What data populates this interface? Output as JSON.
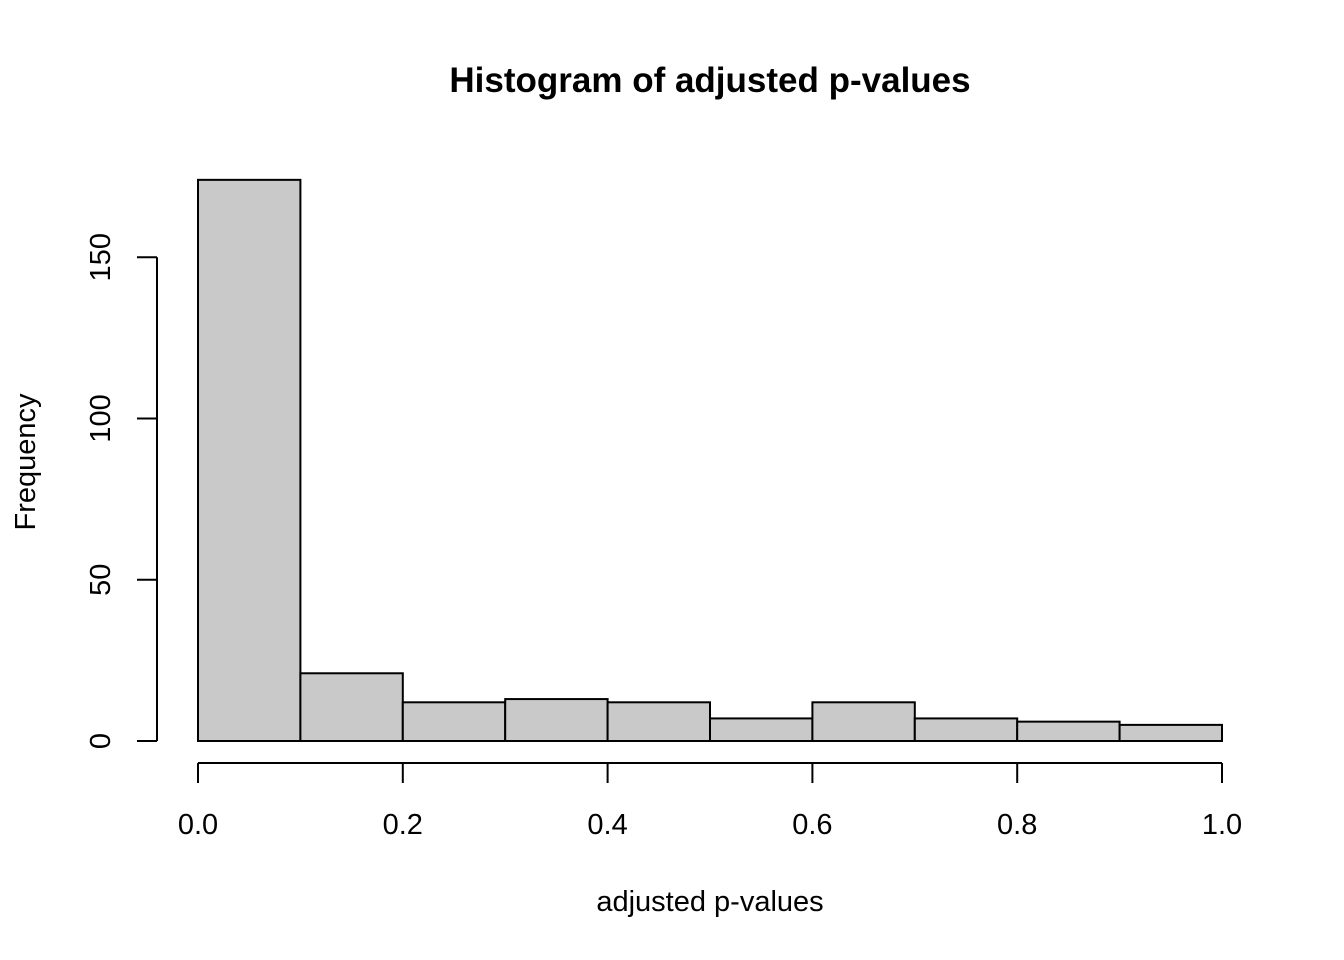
{
  "chart_data": {
    "type": "bar",
    "title": "Histogram of adjusted p-values",
    "xlabel": "adjusted p-values",
    "ylabel": "Frequency",
    "bins": [
      {
        "x0": 0.0,
        "x1": 0.1,
        "count": 174
      },
      {
        "x0": 0.1,
        "x1": 0.2,
        "count": 21
      },
      {
        "x0": 0.2,
        "x1": 0.3,
        "count": 12
      },
      {
        "x0": 0.3,
        "x1": 0.4,
        "count": 13
      },
      {
        "x0": 0.4,
        "x1": 0.5,
        "count": 12
      },
      {
        "x0": 0.5,
        "x1": 0.6,
        "count": 7
      },
      {
        "x0": 0.6,
        "x1": 0.7,
        "count": 12
      },
      {
        "x0": 0.7,
        "x1": 0.8,
        "count": 7
      },
      {
        "x0": 0.8,
        "x1": 0.9,
        "count": 6
      },
      {
        "x0": 0.9,
        "x1": 1.0,
        "count": 5
      }
    ],
    "xlim": [
      0,
      1
    ],
    "ylim": [
      0,
      174
    ],
    "x_ticks": [
      {
        "value": 0.0,
        "label": "0.0"
      },
      {
        "value": 0.2,
        "label": "0.2"
      },
      {
        "value": 0.4,
        "label": "0.4"
      },
      {
        "value": 0.6,
        "label": "0.6"
      },
      {
        "value": 0.8,
        "label": "0.8"
      },
      {
        "value": 1.0,
        "label": "1.0"
      }
    ],
    "y_ticks": [
      {
        "value": 0,
        "label": "0"
      },
      {
        "value": 50,
        "label": "50"
      },
      {
        "value": 100,
        "label": "100"
      },
      {
        "value": 150,
        "label": "150"
      }
    ],
    "colors": {
      "bar_fill": "#c9c9c9",
      "bar_stroke": "#000000"
    },
    "grid": false,
    "legend": "none"
  }
}
